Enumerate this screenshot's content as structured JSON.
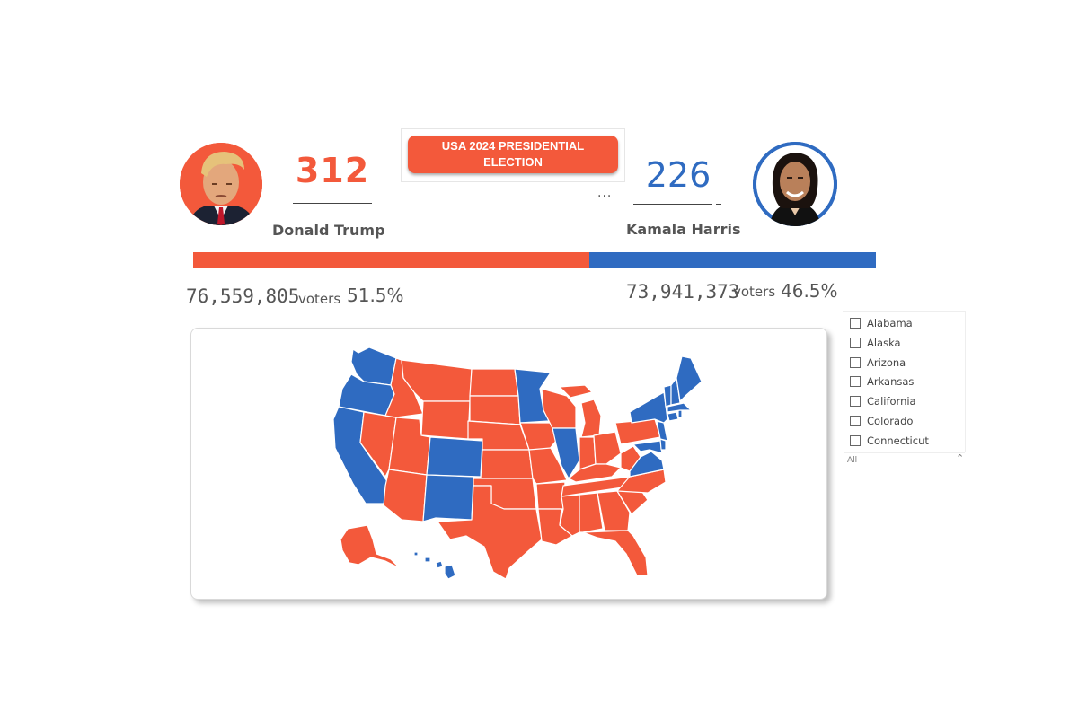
{
  "title": "USA 2024 PRESIDENTIAL ELECTION",
  "candidates": {
    "trump": {
      "name": "Donald Trump",
      "electoral_votes": "312",
      "popular_votes": "76,559,805",
      "voters_word": "voters",
      "percent": "51.5%",
      "color": "#f3593b"
    },
    "harris": {
      "name": "Kamala Harris",
      "electoral_votes": "226",
      "popular_votes": "73,941,373",
      "voters_word": "voters",
      "percent": "46.5%",
      "color": "#2f6bc1"
    }
  },
  "ellipsis": "...",
  "vote_bar": {
    "trump_share": 0.58,
    "harris_share": 0.42
  },
  "slicer": {
    "items": [
      "Alabama",
      "Alaska",
      "Arizona",
      "Arkansas",
      "California",
      "Colorado",
      "Connecticut"
    ],
    "selected_label": "All"
  },
  "map": {
    "red_states": [
      "ID",
      "MT",
      "WY",
      "ND",
      "SD",
      "NE",
      "KS",
      "OK",
      "TX",
      "UT",
      "AZ",
      "NV",
      "IA",
      "MO",
      "AR",
      "LA",
      "WI",
      "MI",
      "IN",
      "OH",
      "KY",
      "TN",
      "MS",
      "AL",
      "GA",
      "FL",
      "SC",
      "NC",
      "WV",
      "PA",
      "AK"
    ],
    "blue_states": [
      "WA",
      "OR",
      "CA",
      "CO",
      "NM",
      "MN",
      "IL",
      "VA",
      "NY",
      "VT",
      "NH",
      "ME",
      "MA",
      "CT",
      "RI",
      "NJ",
      "DE",
      "MD",
      "HI"
    ]
  }
}
